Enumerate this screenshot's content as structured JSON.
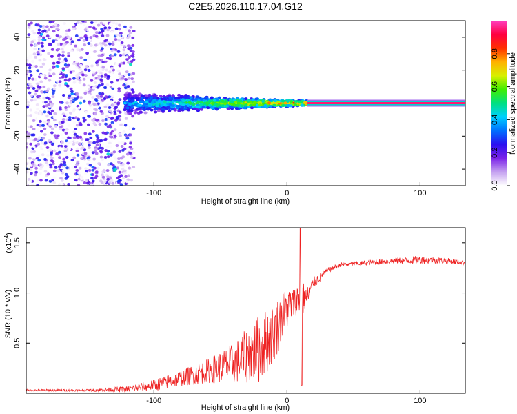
{
  "title": "C2E5.2026.110.17.04.G12",
  "chart_data": [
    {
      "type": "heatmap",
      "name": "spectrogram",
      "xlabel": "Height of straight line (km)",
      "ylabel": "Frequency (Hz)",
      "xlim": [
        -196,
        134
      ],
      "ylim": [
        -50,
        50
      ],
      "xticks": [
        -100,
        0,
        100
      ],
      "yticks": [
        -40,
        -20,
        0,
        20,
        40
      ],
      "colorbar": {
        "label": "Normalized spectral amplitude",
        "range": [
          0,
          1
        ],
        "ticks": [
          0.0,
          0.2,
          0.4,
          0.6,
          0.8
        ],
        "tick_labels": [
          "0.0",
          "0.2",
          "0.4",
          "0.6",
          "0.8"
        ],
        "colormap": [
          "#ffffff",
          "#c4a0f0",
          "#7a22e8",
          "#2a10f0",
          "#0070ff",
          "#00d0ff",
          "#00e080",
          "#40ee00",
          "#d8f000",
          "#ffb000",
          "#ff3000",
          "#ff0040",
          "#ff40c0"
        ]
      },
      "features": {
        "noise_region_x": [
          -196,
          -115
        ],
        "noise_amplitude": [
          0.0,
          0.3
        ],
        "band_x": [
          -122,
          15
        ],
        "band_freq_halfwidth_start": 6,
        "band_freq_halfwidth_end": 1.5,
        "band_amplitude_start": 0.35,
        "band_amplitude_end": 0.85,
        "tone_x": [
          15,
          134
        ],
        "tone_freq": 0,
        "tone_amplitude": 0.95
      }
    },
    {
      "type": "line",
      "name": "snr",
      "xlabel": "Height of straight line (km)",
      "ylabel": "SNR (10 * v/v)",
      "yscale_label": "(x10",
      "yscale_exp": "4",
      "yscale_close": ")",
      "xlim": [
        -196,
        134
      ],
      "ylim": [
        0,
        1.65
      ],
      "xticks": [
        -100,
        0,
        100
      ],
      "yticks": [
        0.5,
        1.0,
        1.5
      ],
      "ytick_labels": [
        "0.5",
        "1.0",
        "1.5"
      ],
      "color": "#ee2222",
      "series": [
        {
          "name": "SNR",
          "x": [
            -196,
            -150,
            -120,
            -100,
            -80,
            -60,
            -40,
            -20,
            -10,
            0,
            5,
            10,
            15,
            20,
            30,
            40,
            60,
            80,
            100,
            120,
            134
          ],
          "y": [
            0.03,
            0.03,
            0.04,
            0.08,
            0.15,
            0.22,
            0.3,
            0.45,
            0.6,
            0.85,
            0.9,
            0.95,
            0.95,
            1.1,
            1.22,
            1.28,
            1.3,
            1.32,
            1.33,
            1.32,
            1.3
          ],
          "noise": [
            0.01,
            0.01,
            0.03,
            0.06,
            0.08,
            0.12,
            0.2,
            0.35,
            0.3,
            0.22,
            0.15,
            0.2,
            0.12,
            0.06,
            0.03,
            0.02,
            0.025,
            0.03,
            0.04,
            0.03,
            0.02
          ]
        }
      ]
    }
  ]
}
